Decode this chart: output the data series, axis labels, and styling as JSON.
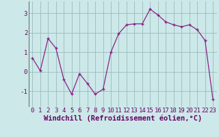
{
  "x": [
    0,
    1,
    2,
    3,
    4,
    5,
    6,
    7,
    8,
    9,
    10,
    11,
    12,
    13,
    14,
    15,
    16,
    17,
    18,
    19,
    20,
    21,
    22,
    23
  ],
  "y": [
    0.7,
    0.05,
    1.7,
    1.2,
    -0.4,
    -1.15,
    -0.1,
    -0.6,
    -1.15,
    -0.9,
    1.0,
    1.95,
    2.4,
    2.45,
    2.45,
    3.2,
    2.9,
    2.55,
    2.4,
    2.3,
    2.4,
    2.15,
    1.6,
    -1.4
  ],
  "line_color": "#882288",
  "bg_color": "#cce8e8",
  "grid_color": "#99bbbb",
  "xlabel": "Windchill (Refroidissement éolien,°C)",
  "ylim": [
    -1.8,
    3.6
  ],
  "yticks": [
    -1,
    0,
    1,
    2,
    3
  ],
  "tick_fontsize": 6.5,
  "xlabel_fontsize": 7.5,
  "marker": "+"
}
